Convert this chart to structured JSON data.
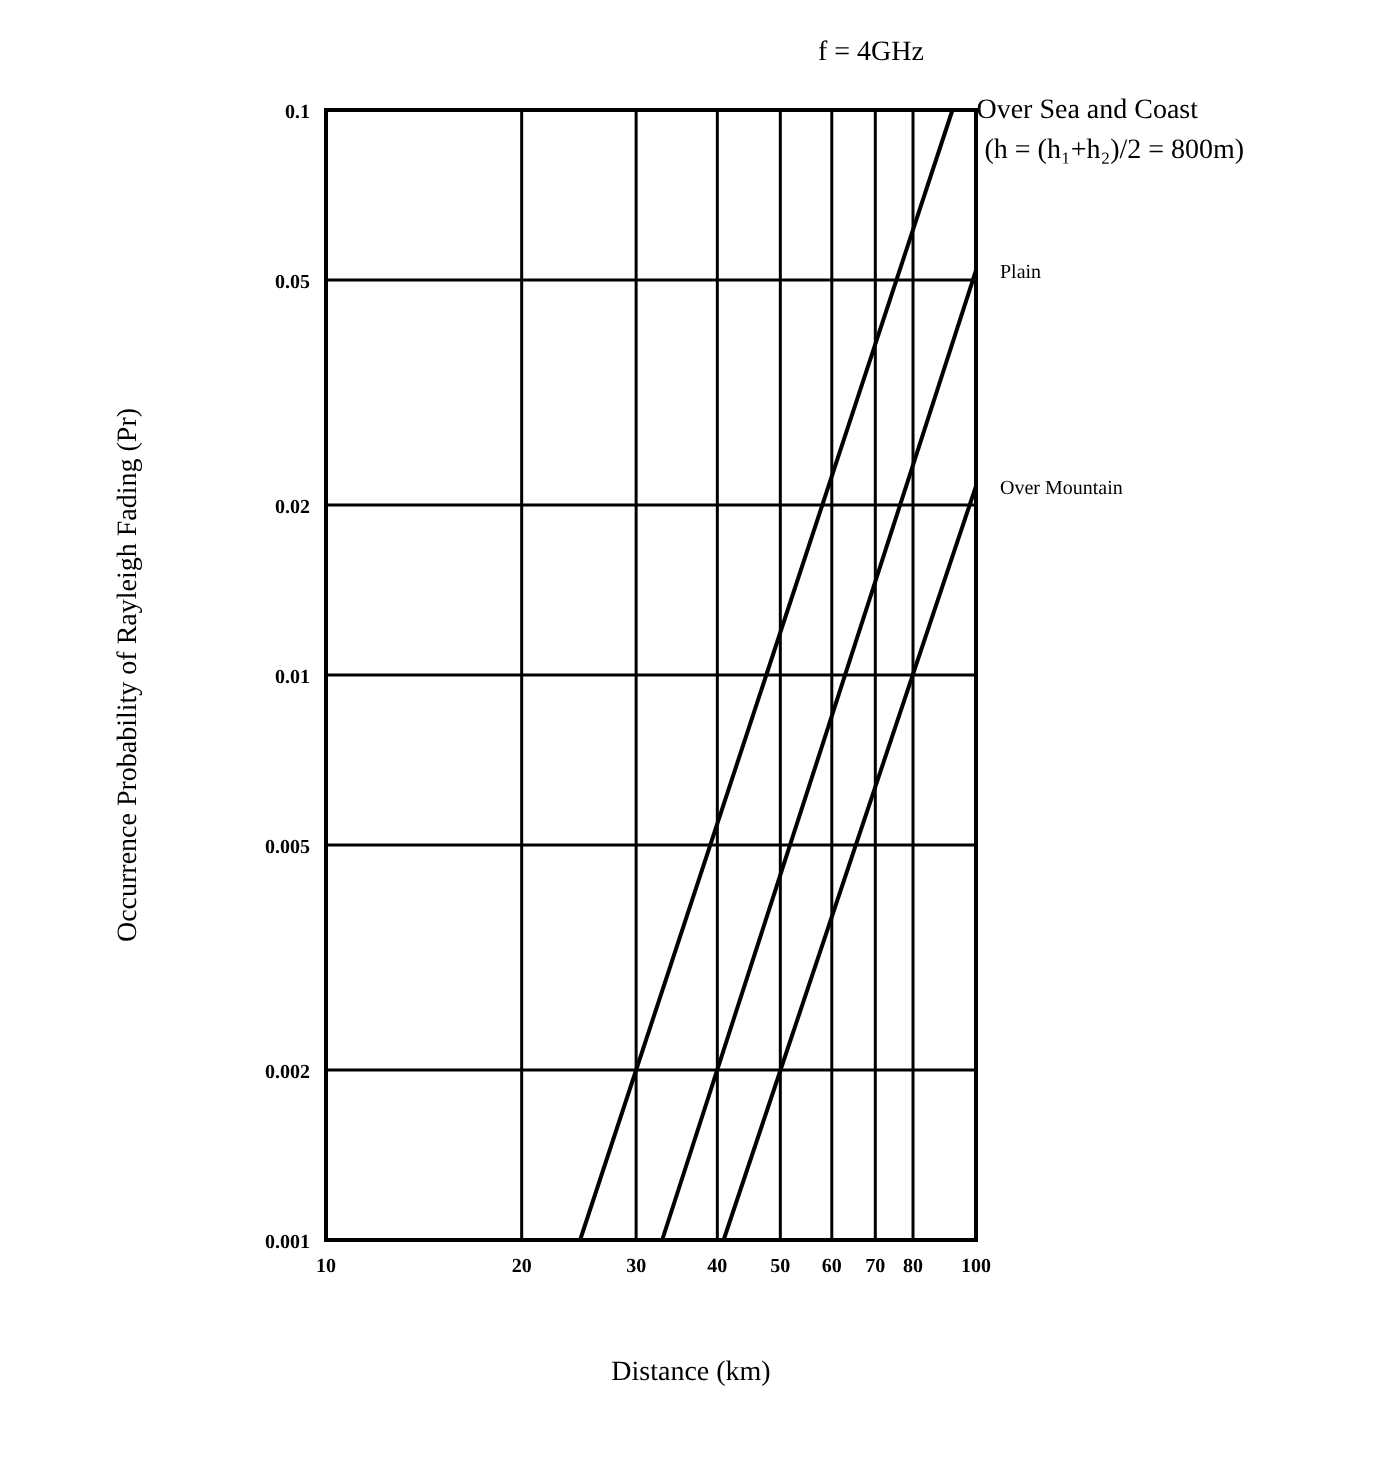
{
  "chart_data": {
    "type": "line",
    "title": "f = 4GHz",
    "xlabel": "Distance (km)",
    "ylabel": "Occurrence Probability of Rayleigh Fading (Pr)",
    "annotations": [
      "(h = (h₁+h₂)/2 = 800m)"
    ],
    "series": [
      {
        "name": "Over Sea and Coast",
        "color": "#000000",
        "x": [
          24.6,
          92
        ],
        "values": [
          0.001,
          0.1
        ]
      },
      {
        "name": "Plain",
        "color": "#000000",
        "x": [
          32.9,
          100
        ],
        "values": [
          0.001,
          0.052
        ]
      },
      {
        "name": "Over Mountain",
        "color": "#000000",
        "x": [
          40.9,
          100
        ],
        "values": [
          0.001,
          0.0216
        ]
      }
    ],
    "log": "xy",
    "xlim": [
      10,
      100
    ],
    "ylim": [
      0.001,
      0.1
    ],
    "xticks": [
      10,
      20,
      30,
      40,
      50,
      60,
      70,
      80,
      100
    ],
    "yticks": [
      0.001,
      0.002,
      0.005,
      0.01,
      0.02,
      0.05,
      0.1
    ],
    "grid": true,
    "marker": "none",
    "line_style": "solid"
  }
}
